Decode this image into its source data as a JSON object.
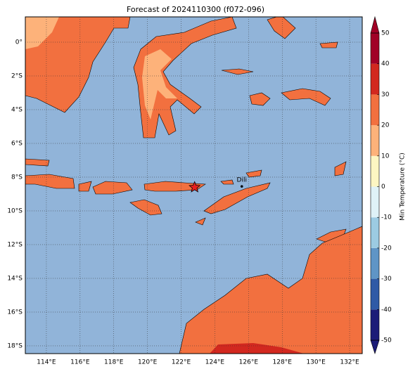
{
  "map": {
    "title": "Forecast of 2024110300 (f072-096)",
    "xlim": [
      112.75,
      132.75
    ],
    "ylim": [
      -18.46,
      1.5
    ],
    "xticks": [
      {
        "value": 114,
        "label": "114°E"
      },
      {
        "value": 116,
        "label": "116°E"
      },
      {
        "value": 118,
        "label": "118°E"
      },
      {
        "value": 120,
        "label": "120°E"
      },
      {
        "value": 122,
        "label": "122°E"
      },
      {
        "value": 124,
        "label": "124°E"
      },
      {
        "value": 126,
        "label": "126°E"
      },
      {
        "value": 128,
        "label": "128°E"
      },
      {
        "value": 130,
        "label": "130°E"
      },
      {
        "value": 132,
        "label": "132°E"
      }
    ],
    "yticks": [
      {
        "value": 0,
        "label": "0°"
      },
      {
        "value": -2,
        "label": "2°S"
      },
      {
        "value": -4,
        "label": "4°S"
      },
      {
        "value": -6,
        "label": "6°S"
      },
      {
        "value": -8,
        "label": "8°S"
      },
      {
        "value": -10,
        "label": "10°S"
      },
      {
        "value": -12,
        "label": "12°S"
      },
      {
        "value": -14,
        "label": "14°S"
      },
      {
        "value": -16,
        "label": "16°S"
      },
      {
        "value": -18,
        "label": "18°S"
      }
    ],
    "grid": true,
    "ocean_color": "#91b4d9",
    "city": {
      "name": "Dili",
      "lon": 125.6,
      "lat": -8.55
    },
    "event": {
      "lon": 122.8,
      "lat": -8.6,
      "color": "#e8201f"
    }
  },
  "colorbar": {
    "label": "Min Temperature (°C)",
    "lim": [
      -50,
      50
    ],
    "ticks": [
      -50,
      -40,
      -30,
      -20,
      -10,
      0,
      10,
      20,
      30,
      40,
      50
    ],
    "colors": [
      "#1c1c78",
      "#2f5aa6",
      "#5f95c6",
      "#9ccbe2",
      "#dff2f7",
      "#fdf6c2",
      "#fdb27a",
      "#f2703f",
      "#d2281f",
      "#a10026"
    ]
  }
}
